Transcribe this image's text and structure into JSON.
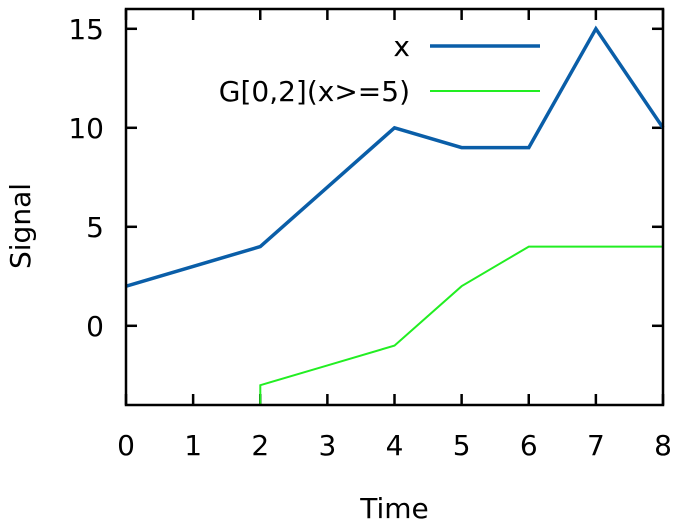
{
  "chart_data": {
    "type": "line",
    "xlabel": "Time",
    "ylabel": "Signal",
    "xlim": [
      0,
      8
    ],
    "ylim": [
      -4,
      16
    ],
    "xticks": [
      0,
      1,
      2,
      3,
      4,
      5,
      6,
      7,
      8
    ],
    "yticks": [
      0,
      5,
      10,
      15
    ],
    "legend_position": "top-right",
    "grid": false,
    "series": [
      {
        "name": "x",
        "color": "#0a5ea8",
        "x": [
          0,
          1,
          2,
          3,
          4,
          5,
          6,
          7,
          8
        ],
        "y": [
          2,
          3,
          4,
          7,
          10,
          9,
          9,
          15,
          10
        ]
      },
      {
        "name": "G[0,2](x>=5)",
        "color": "#22ee22",
        "x": [
          2,
          2,
          3,
          4,
          5,
          6,
          7,
          8
        ],
        "y": [
          -4,
          -3,
          -2,
          -1,
          2,
          4,
          4,
          4
        ]
      }
    ]
  }
}
